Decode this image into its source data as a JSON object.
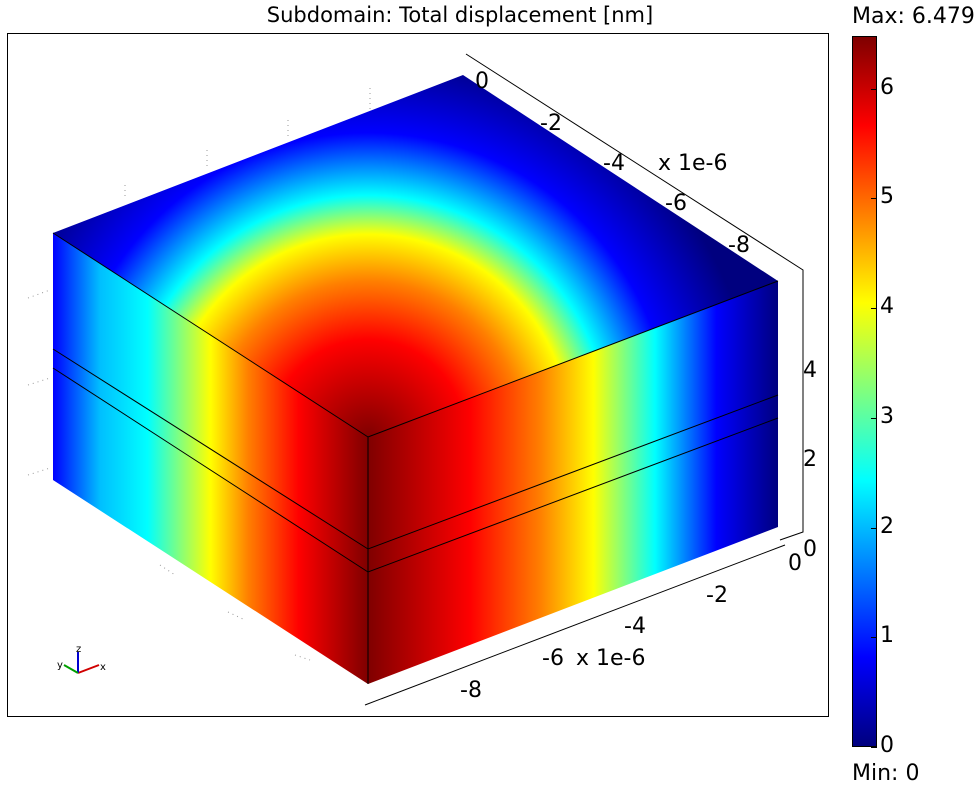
{
  "title": "Subdomain: Total displacement [nm]",
  "colorbar": {
    "max_label": "Max: 6.479",
    "min_label": "Min: 0",
    "max_value": 6.479,
    "min_value": 0,
    "ticks": [
      "0",
      "1",
      "2",
      "3",
      "4",
      "5",
      "6"
    ],
    "colormap": "jet"
  },
  "axes": {
    "y_ticks": [
      "0",
      "-2",
      "-4",
      "-6",
      "-8"
    ],
    "y_exponent": "x 1e-6",
    "x_ticks": [
      "0",
      "-2",
      "-4",
      "-6",
      "-8"
    ],
    "x_exponent": "x 1e-6",
    "z_ticks": [
      "0",
      "2",
      "4"
    ]
  },
  "triad": {
    "x_label": "x",
    "y_label": "y",
    "z_label": "z"
  }
}
